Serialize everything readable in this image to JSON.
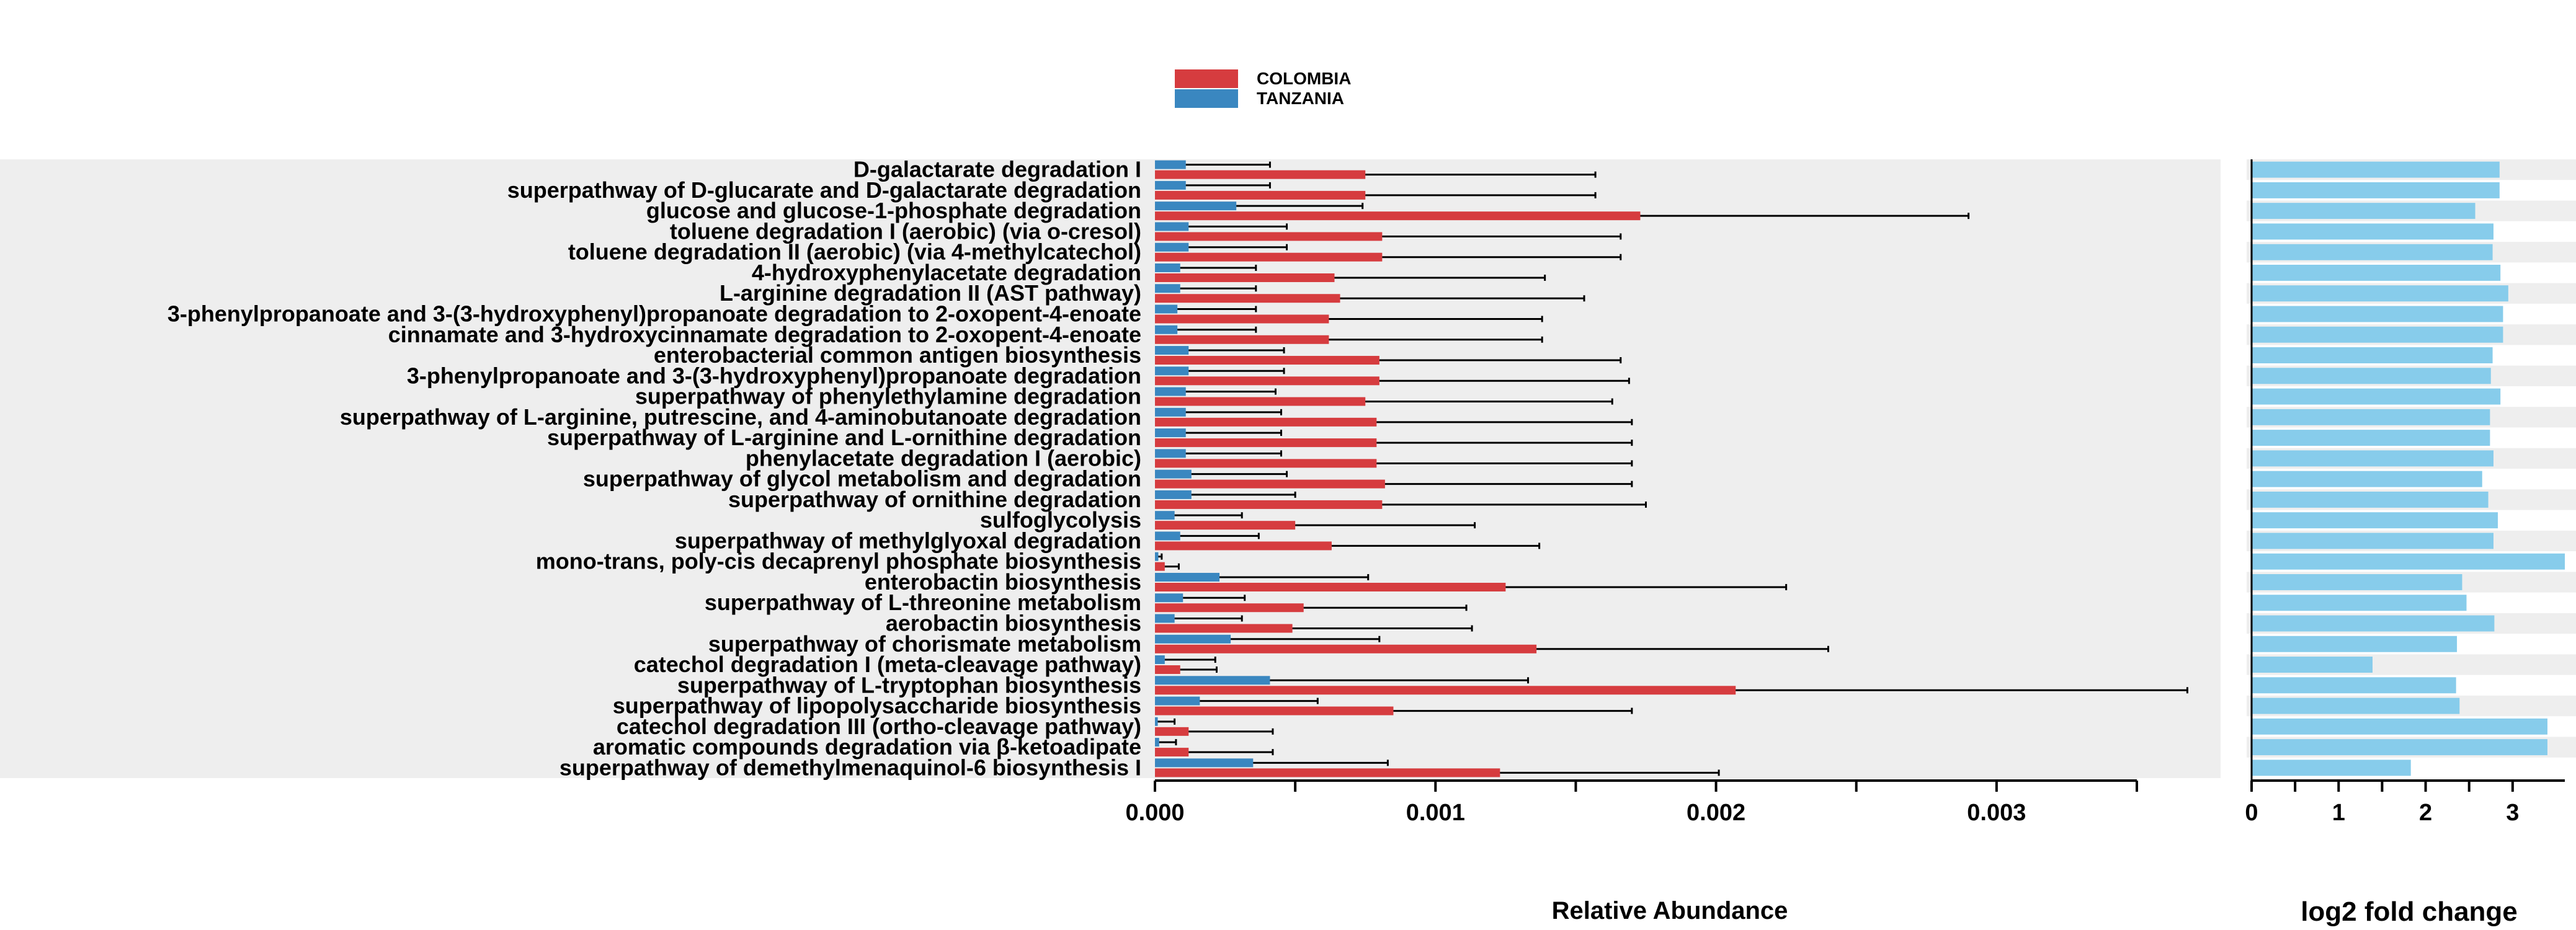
{
  "chart_data": [
    {
      "type": "bar",
      "orientation": "horizontal",
      "xlabel": "Relative Abundance",
      "ylabel": "",
      "xlim": [
        0,
        0.0035
      ],
      "xticks": [
        0.0,
        0.001,
        0.002,
        0.003
      ],
      "xtick_labels": [
        "0.000",
        "0.001",
        "0.002",
        "0.003"
      ],
      "categories": [
        "D-galactarate degradation I",
        "superpathway of D-glucarate and D-galactarate degradation",
        "glucose and glucose-1-phosphate degradation",
        "toluene degradation I (aerobic) (via o-cresol)",
        "toluene degradation II (aerobic) (via 4-methylcatechol)",
        "4-hydroxyphenylacetate degradation",
        "L-arginine degradation II (AST pathway)",
        "3-phenylpropanoate and 3-(3-hydroxyphenyl)propanoate degradation to 2-oxopent-4-enoate",
        "cinnamate and 3-hydroxycinnamate degradation to 2-oxopent-4-enoate",
        "enterobacterial common antigen biosynthesis",
        "3-phenylpropanoate and 3-(3-hydroxyphenyl)propanoate degradation",
        "superpathway of phenylethylamine degradation",
        "superpathway of L-arginine, putrescine, and 4-aminobutanoate degradation",
        "superpathway of L-arginine and L-ornithine degradation",
        "phenylacetate degradation I (aerobic)",
        "superpathway of glycol metabolism and degradation",
        "superpathway of ornithine degradation",
        "sulfoglycolysis",
        "superpathway of methylglyoxal degradation",
        "mono-trans, poly-cis decaprenyl phosphate biosynthesis",
        "enterobactin biosynthesis",
        "superpathway of L-threonine metabolism",
        "aerobactin biosynthesis",
        "superpathway of chorismate metabolism",
        "catechol degradation I (meta-cleavage pathway)",
        "superpathway of L-tryptophan biosynthesis",
        "superpathway of lipopolysaccharide biosynthesis",
        "catechol degradation III (ortho-cleavage pathway)",
        "aromatic compounds degradation via &beta;-ketoadipate",
        "superpathway of demethylmenaquinol-6 biosynthesis I"
      ],
      "series": [
        {
          "name": "TANZANIA",
          "color": "#3a87c0",
          "values": [
            0.00011,
            0.00011,
            0.00029,
            0.00012,
            0.00012,
            9e-05,
            9e-05,
            8e-05,
            8e-05,
            0.00012,
            0.00012,
            0.00011,
            0.00011,
            0.00011,
            0.00011,
            0.00013,
            0.00013,
            7e-05,
            9e-05,
            1.2e-05,
            0.00023,
            0.0001,
            7e-05,
            0.00027,
            3.5e-05,
            0.00041,
            0.00016,
            1e-05,
            1.5e-05,
            0.00035
          ],
          "errors": [
            0.0003,
            0.0003,
            0.00045,
            0.00035,
            0.00035,
            0.00027,
            0.00027,
            0.00028,
            0.00028,
            0.00034,
            0.00034,
            0.00032,
            0.00034,
            0.00034,
            0.00034,
            0.00034,
            0.00037,
            0.00024,
            0.00028,
            1.2e-05,
            0.00053,
            0.00022,
            0.00024,
            0.00053,
            0.00018,
            0.00092,
            0.00042,
            6e-05,
            6e-05,
            0.00048
          ]
        },
        {
          "name": "COLOMBIA",
          "color": "#d63c3f",
          "values": [
            0.00075,
            0.00075,
            0.00173,
            0.00081,
            0.00081,
            0.00064,
            0.00066,
            0.00062,
            0.00062,
            0.0008,
            0.0008,
            0.00075,
            0.00079,
            0.00079,
            0.00079,
            0.00082,
            0.00081,
            0.0005,
            0.00063,
            3.5e-05,
            0.00125,
            0.00053,
            0.00049,
            0.00136,
            9e-05,
            0.00207,
            0.00085,
            0.00012,
            0.00012,
            0.00123
          ],
          "errors": [
            0.00082,
            0.00082,
            0.00117,
            0.00085,
            0.00085,
            0.00075,
            0.00087,
            0.00076,
            0.00076,
            0.00086,
            0.00089,
            0.00088,
            0.00091,
            0.00091,
            0.00091,
            0.00088,
            0.00094,
            0.00064,
            0.00074,
            5e-05,
            0.001,
            0.00058,
            0.00064,
            0.00104,
            0.00013,
            0.00161,
            0.00085,
            0.0003,
            0.0003,
            0.00078
          ]
        }
      ],
      "legend_position": "top-center",
      "background_bands": true
    },
    {
      "type": "bar",
      "orientation": "horizontal",
      "xlabel": "log2 fold change",
      "ylabel": "",
      "xlim": [
        0,
        3.6
      ],
      "xticks": [
        0,
        1,
        2,
        3
      ],
      "xtick_labels": [
        "0",
        "1",
        "2",
        "3"
      ],
      "color": "#87cceb",
      "values": [
        2.85,
        2.85,
        2.57,
        2.78,
        2.77,
        2.86,
        2.95,
        2.89,
        2.89,
        2.77,
        2.75,
        2.86,
        2.74,
        2.74,
        2.78,
        2.65,
        2.72,
        2.83,
        2.78,
        3.6,
        2.42,
        2.47,
        2.79,
        2.36,
        1.39,
        2.35,
        2.39,
        3.4,
        3.4,
        1.83
      ]
    }
  ]
}
